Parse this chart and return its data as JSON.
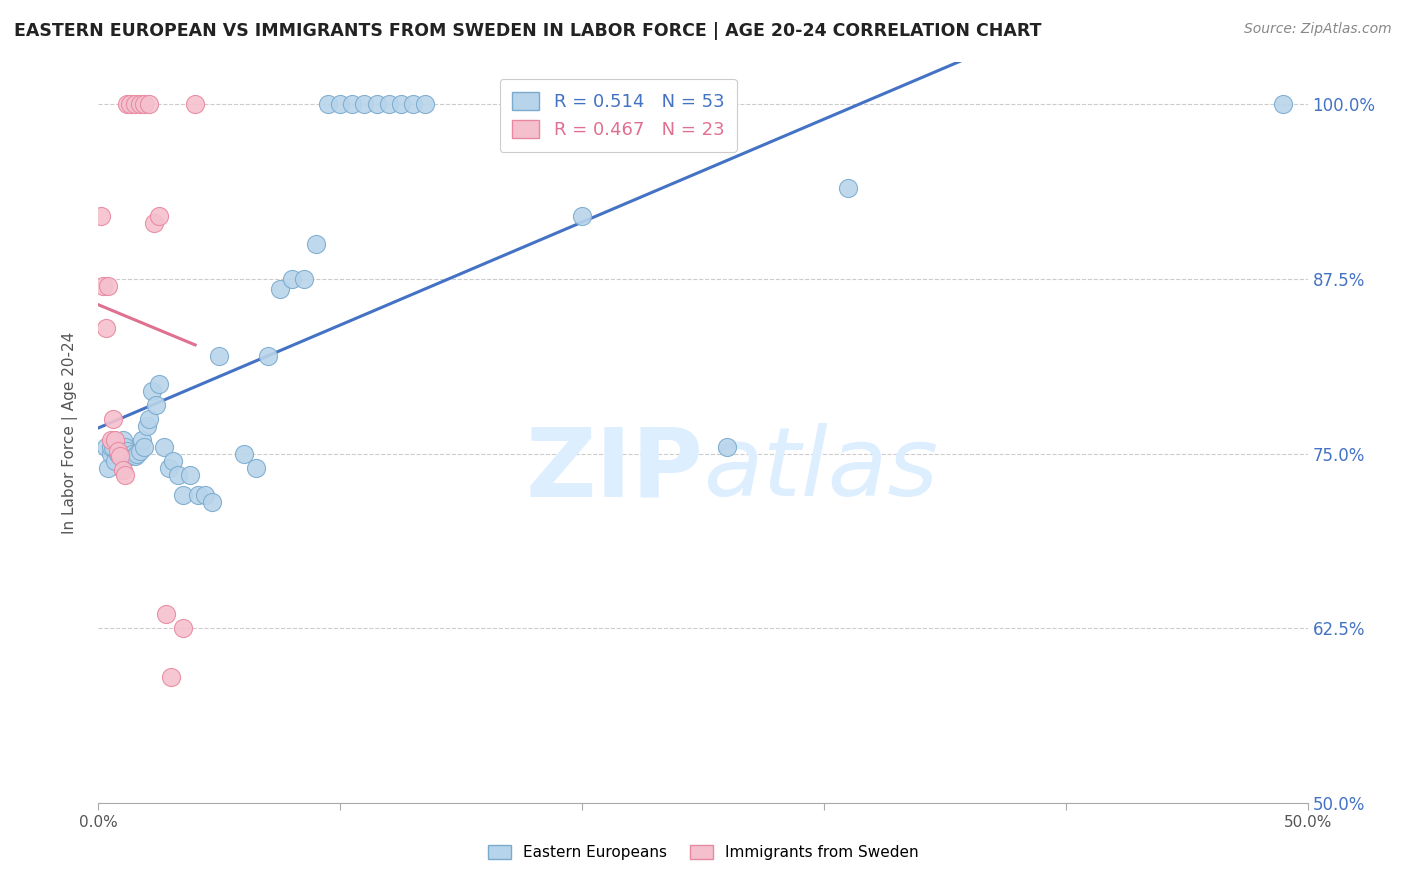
{
  "title": "EASTERN EUROPEAN VS IMMIGRANTS FROM SWEDEN IN LABOR FORCE | AGE 20-24 CORRELATION CHART",
  "source": "Source: ZipAtlas.com",
  "ylabel": "In Labor Force | Age 20-24",
  "xlim": [
    0.0,
    0.5
  ],
  "ylim": [
    0.5,
    1.03
  ],
  "yticks": [
    0.5,
    0.625,
    0.75,
    0.875,
    1.0
  ],
  "ytick_labels": [
    "50.0%",
    "62.5%",
    "75.0%",
    "87.5%",
    "100.0%"
  ],
  "xticks": [
    0.0,
    0.1,
    0.2,
    0.3,
    0.4,
    0.5
  ],
  "xtick_labels": [
    "0.0%",
    "",
    "",
    "",
    "",
    "50.0%"
  ],
  "blue_R": 0.514,
  "blue_N": 53,
  "pink_R": 0.467,
  "pink_N": 23,
  "blue_color": "#b8d4ea",
  "blue_edge": "#7aabcf",
  "pink_color": "#f5c0ce",
  "pink_edge": "#e888a0",
  "blue_line_color": "#4472c4",
  "pink_line_color": "#e07090",
  "watermark": "ZIPatlas",
  "watermark_color": "#ddeeff",
  "legend_blue_label": "Eastern Europeans",
  "legend_pink_label": "Immigrants from Sweden",
  "blue_x": [
    0.003,
    0.004,
    0.005,
    0.005,
    0.006,
    0.007,
    0.008,
    0.009,
    0.01,
    0.011,
    0.012,
    0.013,
    0.014,
    0.015,
    0.016,
    0.017,
    0.018,
    0.019,
    0.02,
    0.021,
    0.022,
    0.024,
    0.025,
    0.027,
    0.029,
    0.031,
    0.033,
    0.035,
    0.038,
    0.041,
    0.044,
    0.047,
    0.05,
    0.06,
    0.065,
    0.07,
    0.075,
    0.08,
    0.085,
    0.09,
    0.095,
    0.1,
    0.105,
    0.11,
    0.115,
    0.12,
    0.125,
    0.13,
    0.135,
    0.2,
    0.26,
    0.31,
    0.49
  ],
  "blue_y": [
    0.755,
    0.74,
    0.75,
    0.755,
    0.755,
    0.745,
    0.75,
    0.748,
    0.76,
    0.755,
    0.752,
    0.748,
    0.75,
    0.748,
    0.75,
    0.752,
    0.76,
    0.755,
    0.77,
    0.775,
    0.795,
    0.785,
    0.8,
    0.755,
    0.74,
    0.745,
    0.735,
    0.72,
    0.735,
    0.72,
    0.72,
    0.715,
    0.82,
    0.75,
    0.74,
    0.82,
    0.868,
    0.875,
    0.875,
    0.9,
    1.0,
    1.0,
    1.0,
    1.0,
    1.0,
    1.0,
    1.0,
    1.0,
    1.0,
    0.92,
    0.755,
    0.94,
    1.0
  ],
  "pink_x": [
    0.001,
    0.002,
    0.003,
    0.004,
    0.005,
    0.006,
    0.007,
    0.008,
    0.009,
    0.01,
    0.011,
    0.012,
    0.013,
    0.015,
    0.017,
    0.019,
    0.021,
    0.023,
    0.025,
    0.028,
    0.03,
    0.035,
    0.04
  ],
  "pink_y": [
    0.92,
    0.87,
    0.84,
    0.87,
    0.76,
    0.775,
    0.76,
    0.752,
    0.748,
    0.738,
    0.735,
    1.0,
    1.0,
    1.0,
    1.0,
    1.0,
    1.0,
    0.915,
    0.92,
    0.635,
    0.59,
    0.625,
    1.0
  ],
  "blue_line_x": [
    0.0,
    0.5
  ],
  "pink_line_x": [
    0.0,
    0.04
  ]
}
